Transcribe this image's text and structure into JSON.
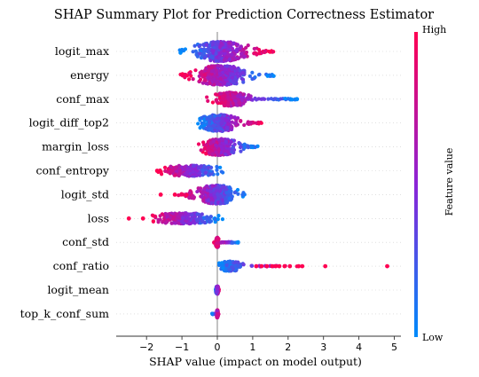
{
  "chart_data": {
    "type": "scatter",
    "subtype": "shap-beeswarm",
    "title": "SHAP Summary Plot for Prediction Correctness Estimator",
    "xlabel": "SHAP value (impact on model output)",
    "xlim": [
      -2.95,
      5.05
    ],
    "xticks": [
      -2,
      -1,
      0,
      1,
      2,
      3,
      4,
      5
    ],
    "xtick_labels": [
      "−2",
      "−1",
      "0",
      "1",
      "2",
      "3",
      "4",
      "5"
    ],
    "colorbar": {
      "label": "Feature value",
      "high_label": "High",
      "low_label": "Low",
      "high_color": "#ff0052",
      "mid_color": "#8b24d7",
      "low_color": "#008bfb"
    },
    "features": [
      {
        "name": "logit_max",
        "min": -1.1,
        "max": 1.6,
        "core": [
          -0.65,
          0.85
        ],
        "lowSide": "left",
        "density": 1.0
      },
      {
        "name": "energy",
        "min": -1.05,
        "max": 1.6,
        "core": [
          -0.6,
          0.8
        ],
        "lowSide": "right",
        "density": 1.0
      },
      {
        "name": "conf_max",
        "min": -0.3,
        "max": 2.25,
        "core": [
          -0.1,
          0.9
        ],
        "lowSide": "right",
        "density": 0.7
      },
      {
        "name": "logit_diff_top2",
        "min": -0.55,
        "max": 1.25,
        "core": [
          -0.5,
          0.6
        ],
        "lowSide": "left",
        "density": 0.85
      },
      {
        "name": "margin_loss",
        "min": -0.55,
        "max": 1.15,
        "core": [
          -0.5,
          0.6
        ],
        "lowSide": "right",
        "density": 0.85
      },
      {
        "name": "conf_entropy",
        "min": -1.7,
        "max": 0.2,
        "core": [
          -1.6,
          0.15
        ],
        "lowSide": "right",
        "density": 0.55
      },
      {
        "name": "logit_std",
        "min": -1.15,
        "max": 0.8,
        "core": [
          -0.6,
          0.55
        ],
        "lowSide": "right",
        "density": 0.95
      },
      {
        "name": "loss",
        "min": -2.0,
        "max": 0.15,
        "core": [
          -1.95,
          0.1
        ],
        "lowSide": "right",
        "density": 0.55
      },
      {
        "name": "conf_std",
        "min": -0.1,
        "max": 0.6,
        "core": [
          -0.05,
          0.05
        ],
        "lowSide": "right",
        "density": 0.5
      },
      {
        "name": "conf_ratio",
        "min": -0.02,
        "max": 2.3,
        "core": [
          0.0,
          0.7
        ],
        "lowSide": "left",
        "density": 0.5
      },
      {
        "name": "logit_mean",
        "min": -0.05,
        "max": 0.05,
        "core": [
          -0.04,
          0.04
        ],
        "lowSide": "left",
        "density": 0.4
      },
      {
        "name": "top_k_conf_sum",
        "min": -0.15,
        "max": 0.05,
        "core": [
          -0.02,
          0.02
        ],
        "lowSide": "left",
        "density": 0.4
      }
    ],
    "outliers": [
      {
        "feature": "conf_entropy",
        "x": -1.7,
        "value": "high"
      },
      {
        "feature": "logit_std",
        "x": -1.6,
        "value": "high"
      },
      {
        "feature": "logit_std",
        "x": -1.2,
        "value": "high"
      },
      {
        "feature": "loss",
        "x": -2.5,
        "value": "high"
      },
      {
        "feature": "loss",
        "x": -2.1,
        "value": "high"
      },
      {
        "feature": "conf_ratio",
        "x": 1.1,
        "value": "high"
      },
      {
        "feature": "conf_ratio",
        "x": 1.25,
        "value": "high"
      },
      {
        "feature": "conf_ratio",
        "x": 1.4,
        "value": "high"
      },
      {
        "feature": "conf_ratio",
        "x": 1.55,
        "value": "high"
      },
      {
        "feature": "conf_ratio",
        "x": 1.65,
        "value": "high"
      },
      {
        "feature": "conf_ratio",
        "x": 1.75,
        "value": "high"
      },
      {
        "feature": "conf_ratio",
        "x": 1.9,
        "value": "high"
      },
      {
        "feature": "conf_ratio",
        "x": 2.05,
        "value": "high"
      },
      {
        "feature": "conf_ratio",
        "x": 2.3,
        "value": "high"
      },
      {
        "feature": "conf_ratio",
        "x": 2.4,
        "value": "high"
      },
      {
        "feature": "conf_ratio",
        "x": 3.05,
        "value": "high"
      },
      {
        "feature": "conf_ratio",
        "x": 4.8,
        "value": "high"
      },
      {
        "feature": "conf_max",
        "x": 2.25,
        "value": "low"
      }
    ],
    "grid": false,
    "zero_line": true
  }
}
